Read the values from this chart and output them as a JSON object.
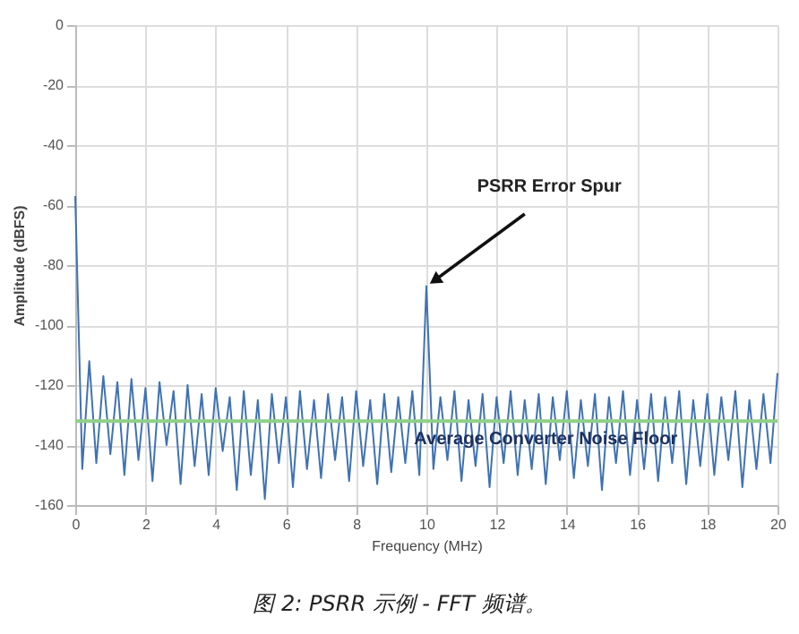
{
  "chart_data": {
    "type": "line",
    "xlabel": "Frequency (MHz)",
    "ylabel": "Amplitude (dBFS)",
    "x": [
      0,
      0.2,
      0.4,
      0.6,
      0.8,
      1,
      1.2,
      1.4,
      1.6,
      1.8,
      2,
      2.2,
      2.4,
      2.6,
      2.8,
      3,
      3.2,
      3.4,
      3.6,
      3.8,
      4,
      4.2,
      4.4,
      4.6,
      4.8,
      5,
      5.2,
      5.4,
      5.6,
      5.8,
      6,
      6.2,
      6.4,
      6.6,
      6.8,
      7,
      7.2,
      7.4,
      7.6,
      7.8,
      8,
      8.2,
      8.4,
      8.6,
      8.8,
      9,
      9.2,
      9.4,
      9.6,
      9.8,
      10,
      10.2,
      10.4,
      10.6,
      10.8,
      11,
      11.2,
      11.4,
      11.6,
      11.8,
      12,
      12.2,
      12.4,
      12.6,
      12.8,
      13,
      13.2,
      13.4,
      13.6,
      13.8,
      14,
      14.2,
      14.4,
      14.6,
      14.8,
      15,
      15.2,
      15.4,
      15.6,
      15.8,
      16,
      16.2,
      16.4,
      16.6,
      16.8,
      17,
      17.2,
      17.4,
      17.6,
      17.8,
      18,
      18.2,
      18.4,
      18.6,
      18.8,
      19,
      19.2,
      19.4,
      19.6,
      19.8,
      20
    ],
    "series": [
      {
        "color": "#3f72b4",
        "values": [
          -57,
          -148,
          -112,
          -146,
          -117,
          -143,
          -119,
          -150,
          -118,
          -145,
          -121,
          -152,
          -119,
          -140,
          -122,
          -153,
          -120,
          -147,
          -123,
          -150,
          -121,
          -142,
          -124,
          -155,
          -122,
          -150,
          -125,
          -158,
          -123,
          -146,
          -124,
          -154,
          -122,
          -148,
          -125,
          -151,
          -123,
          -145,
          -124,
          -152,
          -122,
          -147,
          -125,
          -153,
          -123,
          -149,
          -124,
          -146,
          -122,
          -150,
          -87,
          -148,
          -124,
          -145,
          -122,
          -152,
          -125,
          -147,
          -123,
          -154,
          -124,
          -146,
          -122,
          -150,
          -125,
          -148,
          -123,
          -153,
          -124,
          -145,
          -122,
          -151,
          -125,
          -147,
          -123,
          -155,
          -124,
          -146,
          -122,
          -150,
          -125,
          -148,
          -123,
          -152,
          -124,
          -146,
          -122,
          -153,
          -125,
          -147,
          -123,
          -150,
          -124,
          -145,
          -122,
          -154,
          -125,
          -148,
          -123,
          -146,
          -116
        ]
      }
    ],
    "xlim": [
      0,
      20
    ],
    "xticks": [
      0,
      2,
      4,
      6,
      8,
      10,
      12,
      14,
      16,
      18,
      20
    ],
    "ylim": [
      -160,
      0
    ],
    "yticks": [
      -160,
      -140,
      -120,
      -100,
      -80,
      -60,
      -40,
      -20,
      0
    ],
    "grid": true,
    "ref_lines": [
      {
        "axis": "y",
        "value": -132,
        "label": "Average Converter Noise Floor",
        "color": "#8fcf86"
      }
    ],
    "annotations": [
      {
        "text": "PSRR Error Spur",
        "x": 10,
        "y": -87
      },
      "图 2: PSRR 示例 - FFT 频谱。"
    ]
  }
}
